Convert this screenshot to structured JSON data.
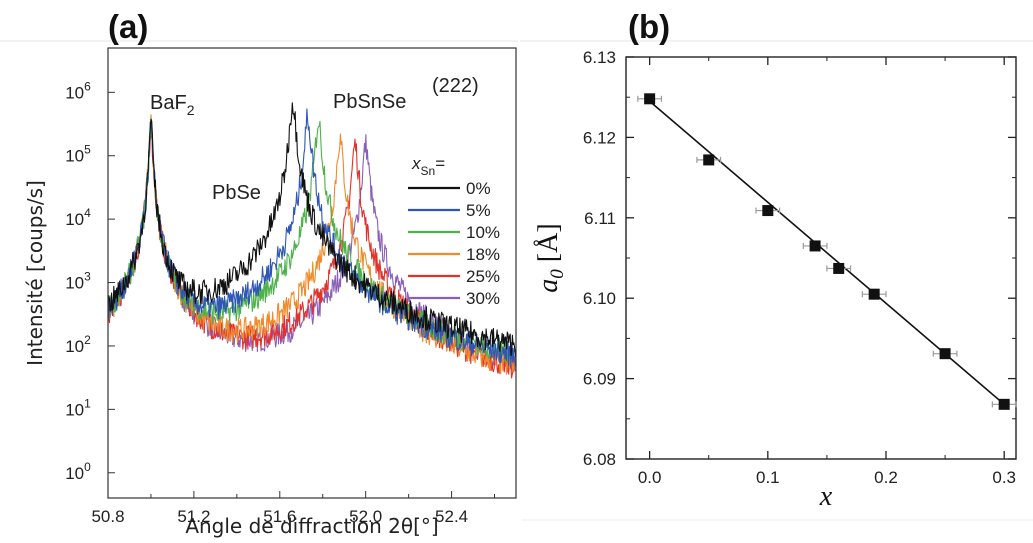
{
  "chart_data": [
    {
      "panel": "(a)",
      "type": "line",
      "xlabel": "Angle de diffraction 2θ[°]",
      "ylabel": "Intensité [coups/s]",
      "xlim": [
        50.8,
        52.7
      ],
      "ylim": [
        0.4,
        5000000
      ],
      "yscale": "log",
      "xticks": [
        50.8,
        51.2,
        51.6,
        52.0,
        52.4
      ],
      "yticks": [
        1,
        10,
        100,
        1000,
        10000,
        100000,
        1000000
      ],
      "annotations": [
        "BaF2",
        "PbSe",
        "PbSnSe",
        "(222)"
      ],
      "legend_title": "xSn=",
      "legend_position": "right",
      "baf2_peak": {
        "x": 51.0,
        "y": 300000
      },
      "series": [
        {
          "name": "0%",
          "color": "#111111",
          "peak_x": 51.66,
          "peak_y": 700000,
          "background": 8
        },
        {
          "name": "5%",
          "color": "#2f55b5",
          "peak_x": 51.73,
          "peak_y": 400000,
          "background": 6
        },
        {
          "name": "10%",
          "color": "#4db24a",
          "peak_x": 51.78,
          "peak_y": 350000,
          "background": 12
        },
        {
          "name": "18%",
          "color": "#f08a2a",
          "peak_x": 51.88,
          "peak_y": 180000,
          "background": 3
        },
        {
          "name": "25%",
          "color": "#e3312a",
          "peak_x": 51.95,
          "peak_y": 150000,
          "background": 3
        },
        {
          "name": "30%",
          "color": "#8b5fb8",
          "peak_x": 52.0,
          "peak_y": 150000,
          "background": 2
        }
      ]
    },
    {
      "panel": "(b)",
      "type": "scatter",
      "xlabel": "x",
      "ylabel": "a0 [Å]",
      "xlim": [
        -0.02,
        0.31
      ],
      "ylim": [
        6.08,
        6.13
      ],
      "xticks": [
        0.0,
        0.1,
        0.2,
        0.3
      ],
      "yticks": [
        6.08,
        6.09,
        6.1,
        6.11,
        6.12,
        6.13
      ],
      "points": [
        {
          "x": 0.0,
          "y": 6.1248
        },
        {
          "x": 0.05,
          "y": 6.1172
        },
        {
          "x": 0.1,
          "y": 6.1109
        },
        {
          "x": 0.14,
          "y": 6.1065
        },
        {
          "x": 0.16,
          "y": 6.1037
        },
        {
          "x": 0.19,
          "y": 6.1005
        },
        {
          "x": 0.25,
          "y": 6.0931
        },
        {
          "x": 0.3,
          "y": 6.0868
        }
      ],
      "fit_line": {
        "x": [
          0.0,
          0.3
        ],
        "y": [
          6.1245,
          6.0868
        ]
      },
      "x_error": 0.01
    }
  ]
}
